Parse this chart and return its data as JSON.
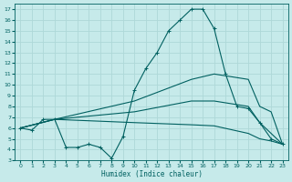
{
  "xlabel": "Humidex (Indice chaleur)",
  "xlim": [
    -0.5,
    23.5
  ],
  "ylim": [
    3,
    17.5
  ],
  "yticks": [
    3,
    4,
    5,
    6,
    7,
    8,
    9,
    10,
    11,
    12,
    13,
    14,
    15,
    16,
    17
  ],
  "xticks": [
    0,
    1,
    2,
    3,
    4,
    5,
    6,
    7,
    8,
    9,
    10,
    11,
    12,
    13,
    14,
    15,
    16,
    17,
    18,
    19,
    20,
    21,
    22,
    23
  ],
  "background_color": "#c6eaea",
  "grid_color": "#aed8d8",
  "line_color": "#006060",
  "lines": [
    {
      "markers": true,
      "x": [
        0,
        1,
        2,
        3,
        4,
        5,
        6,
        7,
        8,
        9,
        10,
        11,
        12,
        13,
        14,
        15,
        16,
        17,
        18,
        19,
        20,
        21,
        22,
        23
      ],
      "y": [
        6,
        5.8,
        6.8,
        6.8,
        4.2,
        4.2,
        4.5,
        4.2,
        3.2,
        5.2,
        9.5,
        11.5,
        13,
        15,
        16,
        17,
        17,
        15.2,
        11,
        8,
        7.8,
        6.5,
        5,
        4.5
      ]
    },
    {
      "markers": false,
      "x": [
        0,
        3,
        10,
        15,
        17,
        20,
        21,
        22,
        23
      ],
      "y": [
        6,
        6.8,
        8.5,
        10.5,
        11,
        10.5,
        8,
        7.5,
        4.5
      ]
    },
    {
      "markers": false,
      "x": [
        0,
        3,
        10,
        15,
        17,
        20,
        21,
        22,
        23
      ],
      "y": [
        6,
        6.8,
        7.5,
        8.5,
        8.5,
        8,
        6.5,
        5.5,
        4.5
      ]
    },
    {
      "markers": false,
      "x": [
        0,
        3,
        10,
        15,
        17,
        20,
        21,
        22,
        23
      ],
      "y": [
        6,
        6.8,
        6.5,
        6.3,
        6.2,
        5.5,
        5,
        4.8,
        4.5
      ]
    }
  ]
}
